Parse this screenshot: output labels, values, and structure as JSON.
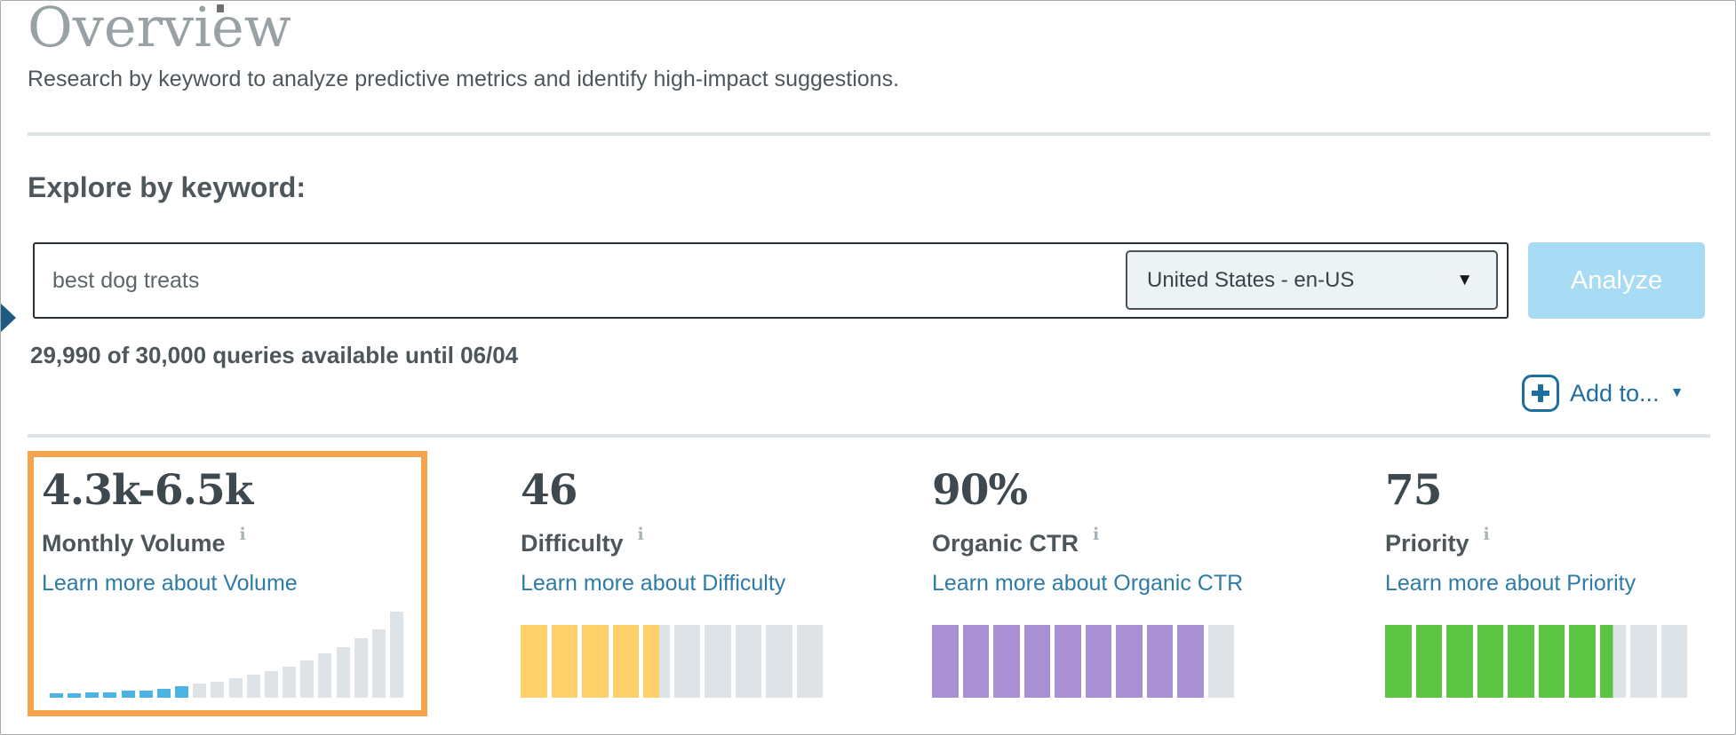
{
  "header": {
    "title": "Overview",
    "subtitle": "Research by keyword to analyze predictive metrics and identify high-impact suggestions."
  },
  "explore": {
    "heading": "Explore by keyword:",
    "keyword_value": "best dog treats",
    "locale_selected": "United States - en-US",
    "analyze_label": "Analyze",
    "quota_text": "29,990 of 30,000 queries available until 06/04",
    "add_to_label": "Add to...",
    "dropdown_caret": "▼",
    "add_to_caret": "▼"
  },
  "metrics": [
    {
      "id": "monthly-volume",
      "value": "4.3k-6.5k",
      "label": "Monthly Volume",
      "info_icon": "i",
      "link_label": "Learn more about Volume",
      "highlighted": true,
      "chart": {
        "type": "bar",
        "bar_heights_pct": [
          5,
          5,
          6,
          6,
          8,
          8,
          10,
          13,
          16,
          18,
          22,
          26,
          30,
          35,
          42,
          50,
          57,
          67,
          77,
          97
        ],
        "highlighted_bar_count": 8,
        "bar_color": "#4cb4e2",
        "muted_color": "#dde3e6"
      }
    },
    {
      "id": "difficulty",
      "value": "46",
      "label": "Difficulty",
      "info_icon": "i",
      "link_label": "Learn more about Difficulty",
      "score_out_of_10": 4.6,
      "segment_count": 10,
      "bar_color": "#fdd06a",
      "muted_color": "#dde3e6"
    },
    {
      "id": "organic-ctr",
      "value": "90%",
      "label": "Organic CTR",
      "info_icon": "i",
      "link_label": "Learn more about Organic CTR",
      "score_out_of_10": 9,
      "segment_count": 10,
      "bar_color": "#a98fd3",
      "muted_color": "#dde3e6"
    },
    {
      "id": "priority",
      "value": "75",
      "label": "Priority",
      "info_icon": "i",
      "link_label": "Learn more about Priority",
      "score_out_of_10": 7.5,
      "segment_count": 10,
      "bar_color": "#5cc443",
      "muted_color": "#dde3e6"
    }
  ],
  "colors": {
    "title_gray": "#98a2a5",
    "body_text": "#4d575c",
    "link_blue": "#2e7ba6",
    "action_blue": "#1e6e9f",
    "analyze_button_bg": "#a8dbf4",
    "highlight_border_orange": "#f3a44d",
    "nav_arrow_navy": "#1d5a80",
    "divider_gray": "#dde3e4",
    "volume_bar_blue": "#4cb4e2",
    "difficulty_yellow": "#fdd06a",
    "organic_ctr_purple": "#a98fd3",
    "priority_green": "#5cc443",
    "muted_bar_gray": "#dde3e6"
  }
}
